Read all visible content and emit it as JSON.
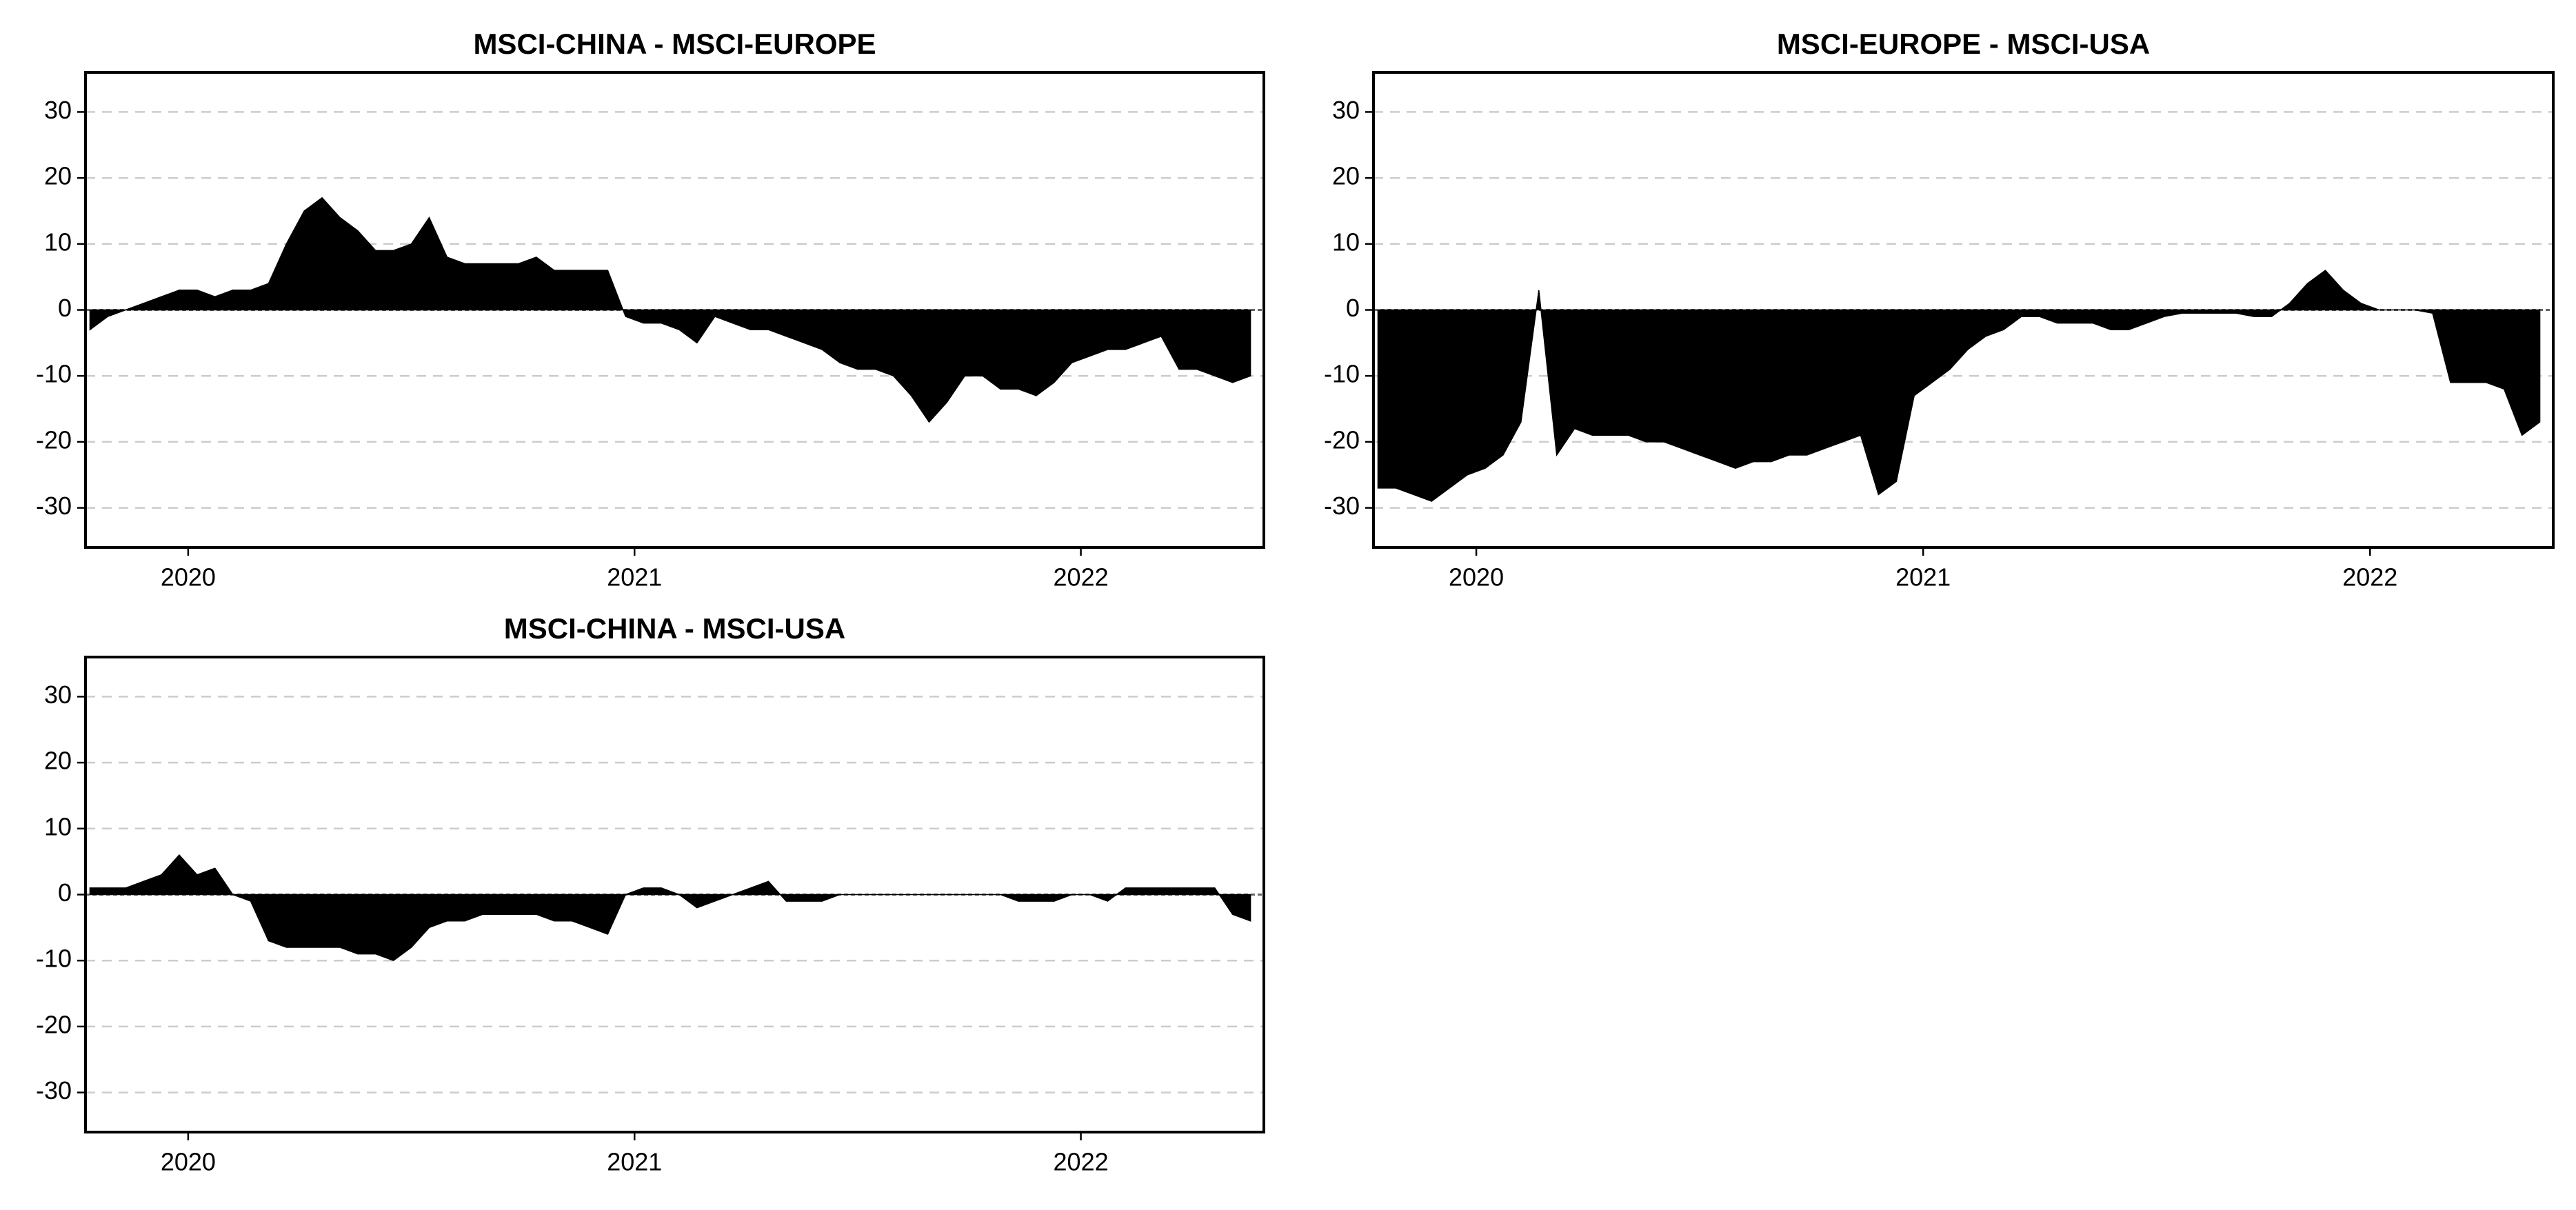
{
  "chart_data": [
    {
      "type": "area",
      "title": "MSCI-CHINA - MSCI-EUROPE",
      "color": "#000000",
      "grid": true,
      "xlim": [
        2019.77,
        2022.41
      ],
      "ylim": [
        -36,
        36
      ],
      "xticks": [
        2020,
        2021,
        2022
      ],
      "yticks": [
        -30,
        -20,
        -10,
        0,
        10,
        20,
        30
      ],
      "x": [
        2019.78,
        2019.82,
        2019.86,
        2019.9,
        2019.94,
        2019.98,
        2020.02,
        2020.06,
        2020.1,
        2020.14,
        2020.18,
        2020.22,
        2020.26,
        2020.3,
        2020.34,
        2020.38,
        2020.42,
        2020.46,
        2020.5,
        2020.54,
        2020.58,
        2020.62,
        2020.66,
        2020.7,
        2020.74,
        2020.78,
        2020.82,
        2020.86,
        2020.9,
        2020.94,
        2020.98,
        2021.02,
        2021.06,
        2021.1,
        2021.14,
        2021.18,
        2021.22,
        2021.26,
        2021.3,
        2021.34,
        2021.38,
        2021.42,
        2021.46,
        2021.5,
        2021.54,
        2021.58,
        2021.62,
        2021.66,
        2021.7,
        2021.74,
        2021.78,
        2021.82,
        2021.86,
        2021.9,
        2021.94,
        2021.98,
        2022.02,
        2022.06,
        2022.1,
        2022.14,
        2022.18,
        2022.22,
        2022.26,
        2022.3,
        2022.34,
        2022.38
      ],
      "values": [
        -3,
        -1,
        0,
        1,
        2,
        3,
        3,
        2,
        3,
        3,
        4,
        10,
        15,
        17,
        14,
        12,
        9,
        9,
        10,
        14,
        8,
        7,
        7,
        7,
        7,
        8,
        6,
        6,
        6,
        6,
        -1,
        -2,
        -2,
        -3,
        -5,
        -1,
        -2,
        -3,
        -3,
        -4,
        -5,
        -6,
        -8,
        -9,
        -9,
        -10,
        -13,
        -17,
        -14,
        -10,
        -10,
        -12,
        -12,
        -13,
        -11,
        -8,
        -7,
        -6,
        -6,
        -5,
        -4,
        -9,
        -9,
        -10,
        -11,
        -10
      ]
    },
    {
      "type": "area",
      "title": "MSCI-EUROPE - MSCI-USA",
      "color": "#000000",
      "grid": true,
      "xlim": [
        2019.77,
        2022.41
      ],
      "ylim": [
        -36,
        36
      ],
      "xticks": [
        2020,
        2021,
        2022
      ],
      "yticks": [
        -30,
        -20,
        -10,
        0,
        10,
        20,
        30
      ],
      "x": [
        2019.78,
        2019.82,
        2019.86,
        2019.9,
        2019.94,
        2019.98,
        2020.02,
        2020.06,
        2020.1,
        2020.14,
        2020.18,
        2020.22,
        2020.26,
        2020.3,
        2020.34,
        2020.38,
        2020.42,
        2020.46,
        2020.5,
        2020.54,
        2020.58,
        2020.62,
        2020.66,
        2020.7,
        2020.74,
        2020.78,
        2020.82,
        2020.86,
        2020.9,
        2020.94,
        2020.98,
        2021.02,
        2021.06,
        2021.1,
        2021.14,
        2021.18,
        2021.22,
        2021.26,
        2021.3,
        2021.34,
        2021.38,
        2021.42,
        2021.46,
        2021.5,
        2021.54,
        2021.58,
        2021.62,
        2021.66,
        2021.7,
        2021.74,
        2021.78,
        2021.82,
        2021.86,
        2021.9,
        2021.94,
        2021.98,
        2022.02,
        2022.06,
        2022.1,
        2022.14,
        2022.18,
        2022.22,
        2022.26,
        2022.3,
        2022.34,
        2022.38
      ],
      "values": [
        -27,
        -27,
        -28,
        -29,
        -27,
        -25,
        -24,
        -22,
        -17,
        3,
        -22,
        -18,
        -19,
        -19,
        -19,
        -20,
        -20,
        -21,
        -22,
        -23,
        -24,
        -23,
        -23,
        -22,
        -22,
        -21,
        -20,
        -19,
        -28,
        -26,
        -13,
        -11,
        -9,
        -6,
        -4,
        -3,
        -1,
        -1,
        -2,
        -2,
        -2,
        -3,
        -3,
        -2,
        -1,
        -0.5,
        -0.5,
        -0.5,
        -0.5,
        -1,
        -1,
        1,
        4,
        6,
        3,
        1,
        0,
        0,
        0,
        -0.5,
        -11,
        -11,
        -11,
        -12,
        -19,
        -17
      ]
    },
    {
      "type": "area",
      "title": "MSCI-CHINA - MSCI-USA",
      "color": "#000000",
      "grid": true,
      "xlim": [
        2019.77,
        2022.41
      ],
      "ylim": [
        -36,
        36
      ],
      "xticks": [
        2020,
        2021,
        2022
      ],
      "yticks": [
        -30,
        -20,
        -10,
        0,
        10,
        20,
        30
      ],
      "x": [
        2019.78,
        2019.82,
        2019.86,
        2019.9,
        2019.94,
        2019.98,
        2020.02,
        2020.06,
        2020.1,
        2020.14,
        2020.18,
        2020.22,
        2020.26,
        2020.3,
        2020.34,
        2020.38,
        2020.42,
        2020.46,
        2020.5,
        2020.54,
        2020.58,
        2020.62,
        2020.66,
        2020.7,
        2020.74,
        2020.78,
        2020.82,
        2020.86,
        2020.9,
        2020.94,
        2020.98,
        2021.02,
        2021.06,
        2021.1,
        2021.14,
        2021.18,
        2021.22,
        2021.26,
        2021.3,
        2021.34,
        2021.38,
        2021.42,
        2021.46,
        2021.5,
        2021.54,
        2021.58,
        2021.62,
        2021.66,
        2021.7,
        2021.74,
        2021.78,
        2021.82,
        2021.86,
        2021.9,
        2021.94,
        2021.98,
        2022.02,
        2022.06,
        2022.1,
        2022.14,
        2022.18,
        2022.22,
        2022.26,
        2022.3,
        2022.34,
        2022.38
      ],
      "values": [
        1,
        1,
        1,
        2,
        3,
        6,
        3,
        4,
        0,
        -1,
        -7,
        -8,
        -8,
        -8,
        -8,
        -9,
        -9,
        -10,
        -8,
        -5,
        -4,
        -4,
        -3,
        -3,
        -3,
        -3,
        -4,
        -4,
        -5,
        -6,
        0,
        1,
        1,
        0,
        -2,
        -1,
        0,
        1,
        2,
        -1,
        -1,
        -1,
        0,
        0,
        0,
        0,
        0,
        0,
        0,
        0,
        0,
        0,
        -1,
        -1,
        -1,
        0,
        0,
        -1,
        1,
        1,
        1,
        1,
        1,
        1,
        -3,
        -4
      ]
    }
  ]
}
